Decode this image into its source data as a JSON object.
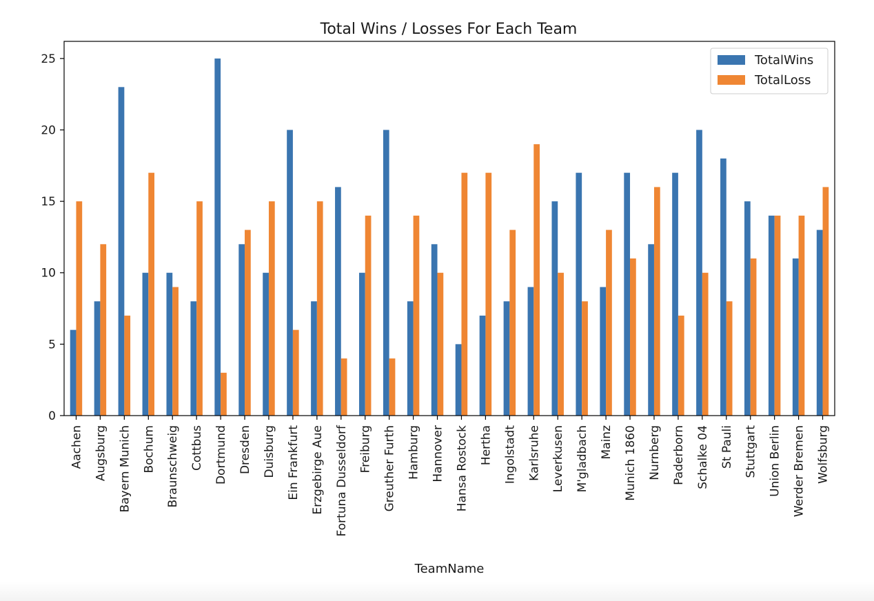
{
  "chart_data": {
    "type": "bar",
    "title": "Total Wins / Losses For Each Team",
    "xlabel": "TeamName",
    "ylabel": "",
    "ylim": [
      0,
      26.2
    ],
    "yticks": [
      0,
      5,
      10,
      15,
      20,
      25
    ],
    "grid": false,
    "legend_position": "top-right",
    "categories": [
      "Aachen",
      "Augsburg",
      "Bayern Munich",
      "Bochum",
      "Braunschweig",
      "Cottbus",
      "Dortmund",
      "Dresden",
      "Duisburg",
      "Ein Frankfurt",
      "Erzgebirge Aue",
      "Fortuna Dusseldorf",
      "Freiburg",
      "Greuther Furth",
      "Hamburg",
      "Hannover",
      "Hansa Rostock",
      "Hertha",
      "Ingolstadt",
      "Karlsruhe",
      "Leverkusen",
      "M'gladbach",
      "Mainz",
      "Munich 1860",
      "Nurnberg",
      "Paderborn",
      "Schalke 04",
      "St Pauli",
      "Stuttgart",
      "Union Berlin",
      "Werder Bremen",
      "Wolfsburg"
    ],
    "series": [
      {
        "name": "TotalWins",
        "color": "#3a75b0",
        "values": [
          6,
          8,
          23,
          10,
          10,
          8,
          25,
          12,
          10,
          20,
          8,
          16,
          10,
          20,
          8,
          12,
          5,
          7,
          8,
          9,
          15,
          17,
          9,
          17,
          12,
          17,
          20,
          18,
          15,
          14,
          11,
          13
        ]
      },
      {
        "name": "TotalLoss",
        "color": "#ef8633",
        "values": [
          15,
          12,
          7,
          17,
          9,
          15,
          3,
          13,
          15,
          6,
          15,
          4,
          14,
          4,
          14,
          10,
          17,
          17,
          13,
          19,
          10,
          8,
          13,
          11,
          16,
          7,
          10,
          8,
          11,
          14,
          14,
          16
        ]
      }
    ]
  }
}
